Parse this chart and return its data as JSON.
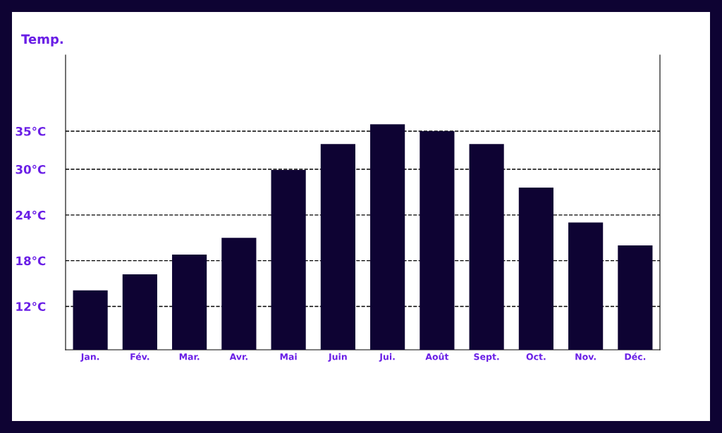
{
  "chart_data": {
    "type": "bar",
    "title": "Temp.",
    "categories": [
      "Jan.",
      "Fév.",
      "Mar.",
      "Avr.",
      "Mai",
      "Juin",
      "Jui.",
      "Août",
      "Sept.",
      "Oct.",
      "Nov.",
      "Déc."
    ],
    "values": [
      14.1,
      16.2,
      18.8,
      21.0,
      29.9,
      33.3,
      35.9,
      35.0,
      33.3,
      27.6,
      23.0,
      20.0
    ],
    "color": "#0e0333",
    "ylim": [
      6.3,
      45
    ],
    "yticks": [
      {
        "value": 12,
        "label": "12°C"
      },
      {
        "value": 18,
        "label": "18°C"
      },
      {
        "value": 24,
        "label": "24°C"
      },
      {
        "value": 30,
        "label": "30°C"
      },
      {
        "value": 35,
        "label": "35°C"
      }
    ],
    "grid": "y",
    "line_style": "dashed"
  }
}
